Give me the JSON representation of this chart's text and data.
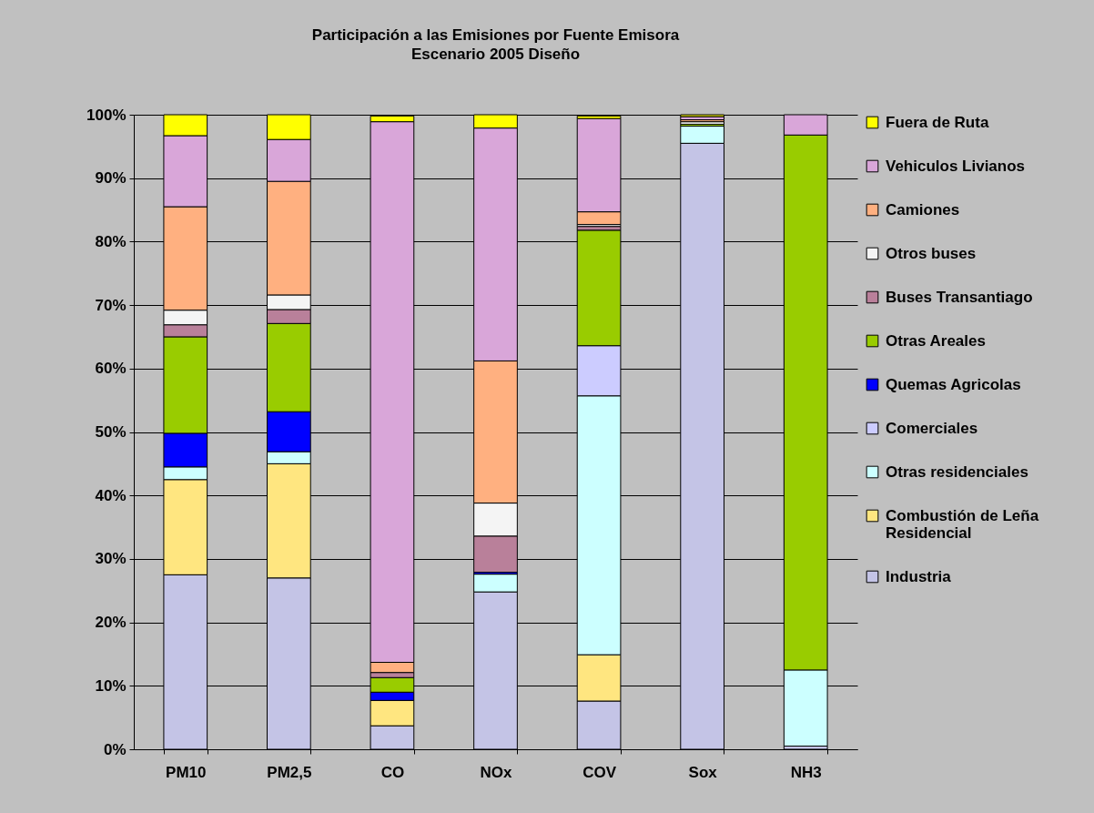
{
  "chart_data": {
    "type": "bar",
    "stacked": true,
    "title": "Participación a las Emisiones por Fuente Emisora",
    "subtitle": "Escenario 2005 Diseño",
    "categories": [
      "PM10",
      "PM2,5",
      "CO",
      "NOx",
      "COV",
      "Sox",
      "NH3"
    ],
    "series": [
      {
        "name": "Industria",
        "color": "#c4c4e6",
        "values": [
          27.5,
          27.0,
          3.7,
          24.8,
          7.6,
          95.5,
          0.5
        ]
      },
      {
        "name": "Combustión de Leña Residencial",
        "color": "#ffe680",
        "values": [
          15.0,
          18.0,
          4.0,
          0,
          7.3,
          0,
          0
        ]
      },
      {
        "name": "Otras residenciales",
        "color": "#ccffff",
        "values": [
          2.0,
          1.9,
          0,
          2.8,
          40.8,
          2.7,
          12.0
        ]
      },
      {
        "name": "Comerciales",
        "color": "#ccccff",
        "values": [
          0,
          0,
          0,
          0,
          7.9,
          0,
          0
        ]
      },
      {
        "name": "Quemas Agricolas",
        "color": "#0000ff",
        "values": [
          5.3,
          6.3,
          1.3,
          0.3,
          null,
          0,
          0
        ]
      },
      {
        "name": "Otras Areales",
        "color": "#99cc00",
        "values": [
          15.2,
          13.9,
          2.3,
          0,
          18.2,
          0.3,
          84.3
        ]
      },
      {
        "name": "Buses Transantiago",
        "color": "#b9809a",
        "values": [
          1.9,
          2.2,
          0.8,
          5.7,
          0.6,
          0,
          0
        ]
      },
      {
        "name": "Otros buses",
        "color": "#f4f4f4",
        "values": [
          2.3,
          2.3,
          null,
          5.2,
          0.3,
          0.4,
          0
        ]
      },
      {
        "name": "Camiones",
        "color": "#ffb080",
        "values": [
          16.3,
          17.9,
          1.6,
          22.4,
          2.0,
          0.3,
          0
        ]
      },
      {
        "name": "Vehiculos Livianos",
        "color": "#d9a6d9",
        "values": [
          11.2,
          6.6,
          85.2,
          36.7,
          14.7,
          0.5,
          3.2
        ]
      },
      {
        "name": "Fuera de Ruta",
        "color": "#ffff00",
        "values": [
          3.3,
          3.9,
          0.9,
          2.1,
          0.4,
          0.3,
          0
        ]
      }
    ],
    "ylim": [
      0,
      100
    ],
    "yticks": [
      {
        "value": 0,
        "label": "0%"
      },
      {
        "value": 10,
        "label": "10%"
      },
      {
        "value": 20,
        "label": "20%"
      },
      {
        "value": 30,
        "label": "30%"
      },
      {
        "value": 40,
        "label": "40%"
      },
      {
        "value": 50,
        "label": "50%"
      },
      {
        "value": 60,
        "label": "60%"
      },
      {
        "value": 70,
        "label": "70%"
      },
      {
        "value": 80,
        "label": "80%"
      },
      {
        "value": 90,
        "label": "90%"
      },
      {
        "value": 100,
        "label": "100%"
      }
    ],
    "grid": "y",
    "legend": "right"
  }
}
